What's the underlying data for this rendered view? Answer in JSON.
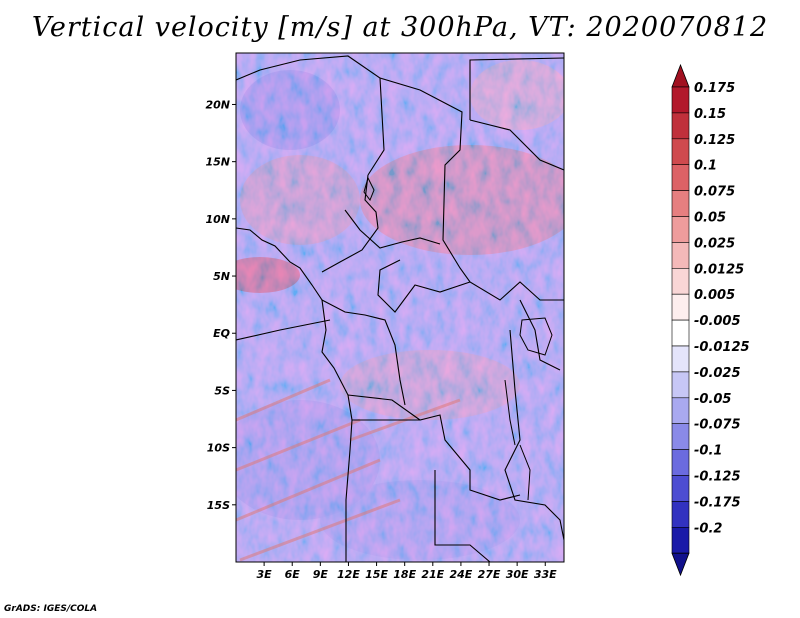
{
  "title": "Vertical velocity [m/s] at 300hPa, VT: 2020070812",
  "credit": "GrADS: IGES/COLA",
  "map": {
    "lon_min": 0,
    "lon_max": 35,
    "lat_min": -20,
    "lat_max": 24.5,
    "lat_ticks": [
      {
        "value": 20,
        "label": "20N"
      },
      {
        "value": 15,
        "label": "15N"
      },
      {
        "value": 10,
        "label": "10N"
      },
      {
        "value": 5,
        "label": "5N"
      },
      {
        "value": 0,
        "label": "EQ"
      },
      {
        "value": -5,
        "label": "5S"
      },
      {
        "value": -10,
        "label": "10S"
      },
      {
        "value": -15,
        "label": "15S"
      }
    ],
    "lon_ticks": [
      {
        "value": 3,
        "label": "3E"
      },
      {
        "value": 6,
        "label": "6E"
      },
      {
        "value": 9,
        "label": "9E"
      },
      {
        "value": 12,
        "label": "12E"
      },
      {
        "value": 15,
        "label": "15E"
      },
      {
        "value": 18,
        "label": "18E"
      },
      {
        "value": 21,
        "label": "21E"
      },
      {
        "value": 24,
        "label": "24E"
      },
      {
        "value": 27,
        "label": "27E"
      },
      {
        "value": 30,
        "label": "30E"
      },
      {
        "value": 33,
        "label": "33E"
      }
    ]
  },
  "colorbar": {
    "levels": [
      {
        "label": "0.175",
        "color": "#b2182b"
      },
      {
        "label": "0.15",
        "color": "#c0303b"
      },
      {
        "label": "0.125",
        "color": "#cf4a4e"
      },
      {
        "label": "0.1",
        "color": "#dc6266"
      },
      {
        "label": "0.075",
        "color": "#e67f80"
      },
      {
        "label": "0.05",
        "color": "#ee9c9c"
      },
      {
        "label": "0.025",
        "color": "#f4b9b9"
      },
      {
        "label": "0.0125",
        "color": "#f9d6d6"
      },
      {
        "label": "0.005",
        "color": "#fdeeee"
      },
      {
        "label": "-0.005",
        "color": "#ffffff"
      },
      {
        "label": "-0.0125",
        "color": "#e4e4fb"
      },
      {
        "label": "-0.025",
        "color": "#c7c7f6"
      },
      {
        "label": "-0.05",
        "color": "#a9a9f0"
      },
      {
        "label": "-0.075",
        "color": "#8a8ae8"
      },
      {
        "label": "-0.1",
        "color": "#6b6bdf"
      },
      {
        "label": "-0.125",
        "color": "#4d4dd2"
      },
      {
        "label": "-0.175",
        "color": "#3232c0"
      },
      {
        "label": "-0.2",
        "color": "#1a1aa8"
      }
    ],
    "top_color": "#a11020",
    "bottom_color": "#11118c"
  }
}
